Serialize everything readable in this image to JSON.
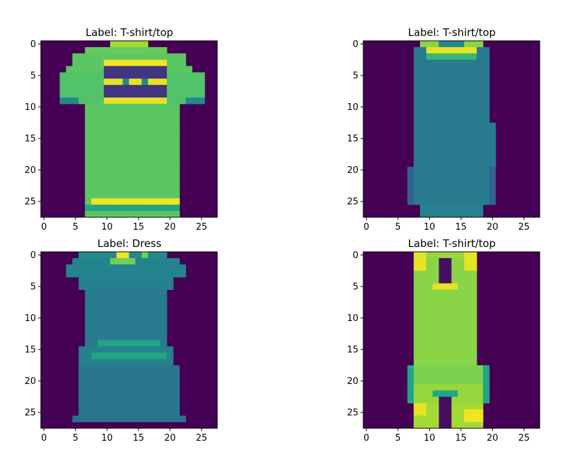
{
  "chart_data": [
    {
      "type": "heatmap",
      "title": "Label: T-shirt/top",
      "colormap": "viridis",
      "x_ticks": [
        0,
        5,
        10,
        15,
        20,
        25
      ],
      "y_ticks": [
        0,
        5,
        10,
        15,
        20,
        25
      ],
      "xlim": [
        -0.5,
        27.5
      ],
      "ylim": [
        27.5,
        -0.5
      ],
      "shape": [
        28,
        28
      ],
      "value_range": [
        0,
        255
      ],
      "rows": [
        {
          "r": [
            0,
            0
          ],
          "c": [
            11,
            16
          ],
          "v": 200
        },
        {
          "r": [
            1,
            1
          ],
          "c": [
            7,
            19
          ],
          "v": 195
        },
        {
          "r": [
            2,
            3
          ],
          "c": [
            5,
            22
          ],
          "v": 190
        },
        {
          "r": [
            4,
            4
          ],
          "c": [
            4,
            23
          ],
          "v": 190
        },
        {
          "r": [
            5,
            9
          ],
          "c": [
            3,
            25
          ],
          "v": 185
        },
        {
          "r": [
            10,
            27
          ],
          "c": [
            7,
            21
          ],
          "v": 190
        }
      ],
      "details": [
        {
          "r": [
            0,
            0
          ],
          "c": [
            11,
            16
          ],
          "v": 220
        },
        {
          "r": [
            3,
            3
          ],
          "c": [
            10,
            19
          ],
          "v": 250
        },
        {
          "r": [
            4,
            4
          ],
          "c": [
            10,
            19
          ],
          "v": 40
        },
        {
          "r": [
            5,
            5
          ],
          "c": [
            10,
            19
          ],
          "v": 40
        },
        {
          "r": [
            6,
            6
          ],
          "c": [
            10,
            19
          ],
          "v": 245
        },
        {
          "r": [
            7,
            7
          ],
          "c": [
            10,
            19
          ],
          "v": 40
        },
        {
          "r": [
            8,
            8
          ],
          "c": [
            10,
            19
          ],
          "v": 40
        },
        {
          "r": [
            9,
            9
          ],
          "c": [
            10,
            19
          ],
          "v": 245
        },
        {
          "r": [
            9,
            9
          ],
          "c": [
            3,
            5
          ],
          "v": 120
        },
        {
          "r": [
            9,
            9
          ],
          "c": [
            23,
            25
          ],
          "v": 120
        },
        {
          "r": [
            6,
            6
          ],
          "c": [
            13,
            13
          ],
          "v": 120
        },
        {
          "r": [
            6,
            6
          ],
          "c": [
            16,
            16
          ],
          "v": 120
        },
        {
          "r": [
            25,
            25
          ],
          "c": [
            8,
            21
          ],
          "v": 250
        },
        {
          "r": [
            26,
            26
          ],
          "c": [
            7,
            21
          ],
          "v": 150
        }
      ]
    },
    {
      "type": "heatmap",
      "title": "Label: T-shirt/top",
      "colormap": "viridis",
      "x_ticks": [
        0,
        5,
        10,
        15,
        20,
        25
      ],
      "y_ticks": [
        0,
        5,
        10,
        15,
        20,
        25
      ],
      "xlim": [
        -0.5,
        27.5
      ],
      "ylim": [
        27.5,
        -0.5
      ],
      "shape": [
        28,
        28
      ],
      "value_range": [
        0,
        255
      ],
      "rows": [
        {
          "r": [
            0,
            0
          ],
          "c": [
            9,
            18
          ],
          "v": 120
        },
        {
          "r": [
            1,
            12
          ],
          "c": [
            8,
            19
          ],
          "v": 105
        },
        {
          "r": [
            13,
            19
          ],
          "c": [
            8,
            20
          ],
          "v": 105
        },
        {
          "r": [
            20,
            25
          ],
          "c": [
            7,
            20
          ],
          "v": 105
        },
        {
          "r": [
            26,
            27
          ],
          "c": [
            9,
            18
          ],
          "v": 110
        }
      ],
      "details": [
        {
          "r": [
            0,
            0
          ],
          "c": [
            9,
            11
          ],
          "v": 210
        },
        {
          "r": [
            0,
            0
          ],
          "c": [
            16,
            18
          ],
          "v": 210
        },
        {
          "r": [
            1,
            1
          ],
          "c": [
            10,
            17
          ],
          "v": 245
        },
        {
          "r": [
            2,
            2
          ],
          "c": [
            10,
            17
          ],
          "v": 170
        },
        {
          "r": [
            20,
            25
          ],
          "c": [
            7,
            7
          ],
          "v": 80
        },
        {
          "r": [
            20,
            25
          ],
          "c": [
            20,
            20
          ],
          "v": 80
        }
      ]
    },
    {
      "type": "heatmap",
      "title": "Label: Dress",
      "colormap": "viridis",
      "x_ticks": [
        0,
        5,
        10,
        15,
        20,
        25
      ],
      "y_ticks": [
        0,
        5,
        10,
        15,
        20,
        25
      ],
      "xlim": [
        -0.5,
        27.5
      ],
      "ylim": [
        27.5,
        -0.5
      ],
      "shape": [
        28,
        28
      ],
      "value_range": [
        0,
        255
      ],
      "rows": [
        {
          "r": [
            0,
            0
          ],
          "c": [
            6,
            19
          ],
          "v": 120
        },
        {
          "r": [
            1,
            1
          ],
          "c": [
            5,
            21
          ],
          "v": 115
        },
        {
          "r": [
            2,
            3
          ],
          "c": [
            4,
            22
          ],
          "v": 115
        },
        {
          "r": [
            4,
            5
          ],
          "c": [
            6,
            20
          ],
          "v": 110
        },
        {
          "r": [
            6,
            14
          ],
          "c": [
            7,
            19
          ],
          "v": 105
        },
        {
          "r": [
            15,
            17
          ],
          "c": [
            6,
            20
          ],
          "v": 110
        },
        {
          "r": [
            18,
            25
          ],
          "c": [
            6,
            21
          ],
          "v": 100
        },
        {
          "r": [
            26,
            26
          ],
          "c": [
            5,
            22
          ],
          "v": 95
        }
      ],
      "details": [
        {
          "r": [
            0,
            0
          ],
          "c": [
            12,
            13
          ],
          "v": 250
        },
        {
          "r": [
            0,
            0
          ],
          "c": [
            16,
            16
          ],
          "v": 200
        },
        {
          "r": [
            1,
            1
          ],
          "c": [
            11,
            14
          ],
          "v": 200
        },
        {
          "r": [
            14,
            14
          ],
          "c": [
            9,
            18
          ],
          "v": 150
        },
        {
          "r": [
            16,
            16
          ],
          "c": [
            8,
            19
          ],
          "v": 150
        }
      ]
    },
    {
      "type": "heatmap",
      "title": "Label: T-shirt/top",
      "colormap": "viridis",
      "x_ticks": [
        0,
        5,
        10,
        15,
        20,
        25
      ],
      "y_ticks": [
        0,
        5,
        10,
        15,
        20,
        25
      ],
      "xlim": [
        -0.5,
        27.5
      ],
      "ylim": [
        27.5,
        -0.5
      ],
      "shape": [
        28,
        28
      ],
      "value_range": [
        0,
        255
      ],
      "rows": [
        {
          "r": [
            0,
            0
          ],
          "c": [
            8,
            17
          ],
          "v": 215
        },
        {
          "r": [
            1,
            17
          ],
          "c": [
            8,
            17
          ],
          "v": 210
        },
        {
          "r": [
            18,
            20
          ],
          "c": [
            7,
            19
          ],
          "v": 205
        },
        {
          "r": [
            21,
            23
          ],
          "c": [
            7,
            19
          ],
          "v": 215
        },
        {
          "r": [
            24,
            27
          ],
          "c": [
            8,
            18
          ],
          "v": 220
        }
      ],
      "details": [
        {
          "r": [
            0,
            2
          ],
          "c": [
            8,
            9
          ],
          "v": 245
        },
        {
          "r": [
            0,
            2
          ],
          "c": [
            16,
            17
          ],
          "v": 245
        },
        {
          "r": [
            1,
            4
          ],
          "c": [
            12,
            13
          ],
          "v": 10
        },
        {
          "r": [
            5,
            5
          ],
          "c": [
            11,
            14
          ],
          "v": 245
        },
        {
          "r": [
            22,
            27
          ],
          "c": [
            12,
            13
          ],
          "v": 10
        },
        {
          "r": [
            22,
            22
          ],
          "c": [
            11,
            14
          ],
          "v": 150
        },
        {
          "r": [
            24,
            25
          ],
          "c": [
            8,
            9
          ],
          "v": 245
        },
        {
          "r": [
            25,
            26
          ],
          "c": [
            16,
            18
          ],
          "v": 250
        },
        {
          "r": [
            18,
            23
          ],
          "c": [
            7,
            7
          ],
          "v": 150
        },
        {
          "r": [
            18,
            23
          ],
          "c": [
            19,
            19
          ],
          "v": 150
        }
      ]
    }
  ]
}
